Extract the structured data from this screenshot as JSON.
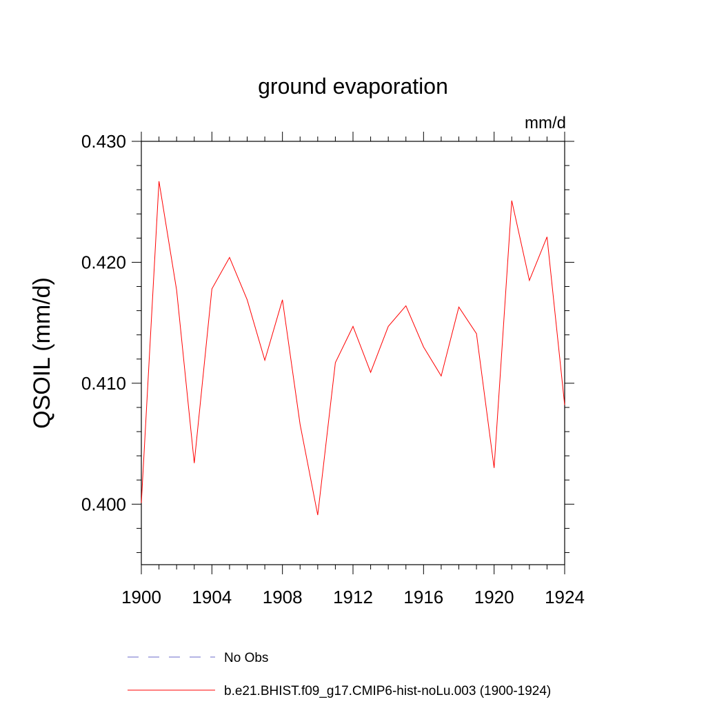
{
  "chart_data": {
    "type": "line",
    "title": "ground evaporation",
    "units_label": "mm/d",
    "ylabel": "QSOIL  (mm/d)",
    "xlabel": "",
    "xlim": [
      1900,
      1924
    ],
    "ylim": [
      0.395,
      0.43
    ],
    "x_ticks": [
      1900,
      1904,
      1908,
      1912,
      1916,
      1920,
      1924
    ],
    "x_tick_labels": [
      "1900",
      "1904",
      "1908",
      "1912",
      "1916",
      "1920",
      "1924"
    ],
    "y_ticks": [
      0.4,
      0.41,
      0.42,
      0.43
    ],
    "y_tick_labels": [
      "0.400",
      "0.410",
      "0.420",
      "0.430"
    ],
    "y_minor_step": 0.002,
    "x_minor_step": 1,
    "grid": false,
    "legend_position": "bottom-center",
    "series": [
      {
        "name": "No Obs",
        "style": "dashed",
        "color": "#6a6ac8",
        "x": [],
        "values": []
      },
      {
        "name": "b.e21.BHIST.f09_g17.CMIP6-hist-noLu.003 (1900-1924)",
        "style": "solid",
        "color": "#ff0000",
        "x": [
          1900,
          1901,
          1902,
          1903,
          1904,
          1905,
          1906,
          1907,
          1908,
          1909,
          1910,
          1911,
          1912,
          1913,
          1914,
          1915,
          1916,
          1917,
          1918,
          1919,
          1920,
          1921,
          1922,
          1923,
          1924
        ],
        "values": [
          0.4001,
          0.4267,
          0.4177,
          0.4034,
          0.4178,
          0.4204,
          0.4169,
          0.4119,
          0.4169,
          0.4066,
          0.3991,
          0.4117,
          0.4147,
          0.4109,
          0.4147,
          0.4164,
          0.413,
          0.4106,
          0.4163,
          0.4141,
          0.403,
          0.4251,
          0.4185,
          0.4221,
          0.4082
        ]
      }
    ]
  }
}
